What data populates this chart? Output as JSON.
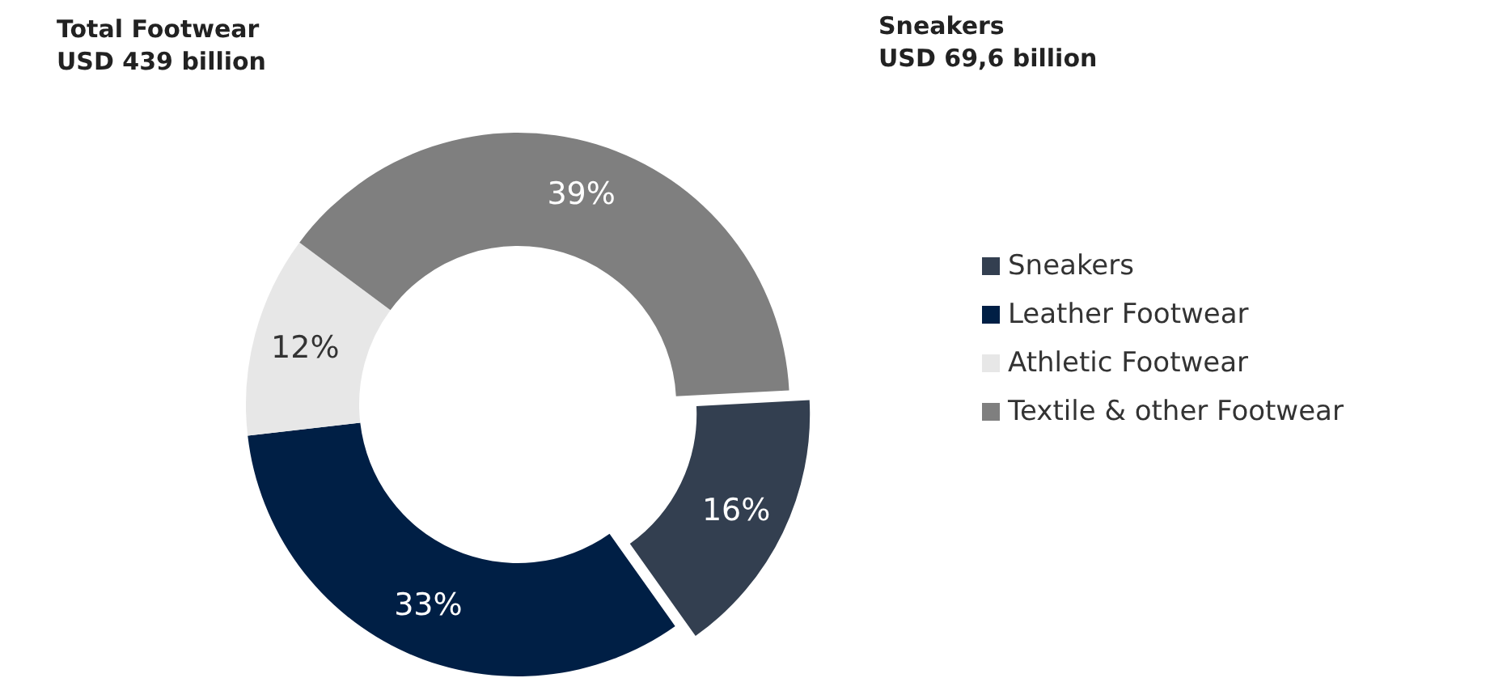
{
  "chart_data": {
    "type": "donut",
    "categories": [
      "Sneakers",
      "Leather Footwear",
      "Athletic Footwear",
      "Textile & other Footwear"
    ],
    "values": [
      16,
      33,
      12,
      39
    ],
    "colors": [
      "#333f50",
      "#001f45",
      "#e7e7e7",
      "#7f7f7f"
    ],
    "value_labels": [
      "16%",
      "33%",
      "12%",
      "39%"
    ],
    "annotations": [
      "Total Footwear\nUSD 439 billion",
      "Sneakers\nUSD 69,6 billion"
    ],
    "legend": "right"
  }
}
